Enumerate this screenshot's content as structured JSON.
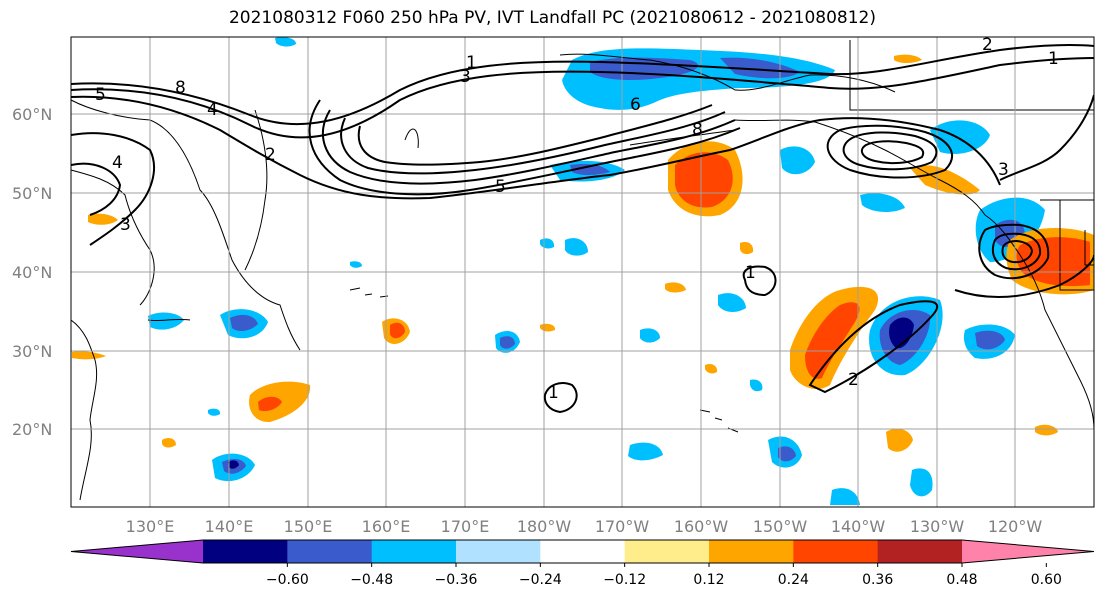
{
  "title": "2021080312 F060 250 hPa PV, IVT Landfall PC (2021080612 - 2021080812)",
  "lat_labels": [
    "60°N",
    "50°N",
    "40°N",
    "30°N",
    "20°N"
  ],
  "lon_labels": [
    "130°E",
    "140°E",
    "150°E",
    "160°E",
    "170°E",
    "180°W",
    "170°W",
    "160°W",
    "150°W",
    "140°W",
    "130°W",
    "120°W"
  ],
  "colorbar": {
    "ticks": [
      "−0.60",
      "−0.48",
      "−0.36",
      "−0.24",
      "−0.12",
      "0.12",
      "0.24",
      "0.36",
      "0.48",
      "0.60"
    ],
    "colors": [
      "#9932cc",
      "#000080",
      "#3a5bcc",
      "#00bfff",
      "#b0e2ff",
      "#ffffff",
      "#ffec8b",
      "#ffa500",
      "#ff4500",
      "#b22222",
      "#ff82ab"
    ]
  },
  "contour_labels": [
    "1",
    "3",
    "2",
    "5",
    "8",
    "4",
    "6",
    "8",
    "5",
    "4",
    "3",
    "2",
    "1",
    "1",
    "1",
    "3",
    "2"
  ]
}
